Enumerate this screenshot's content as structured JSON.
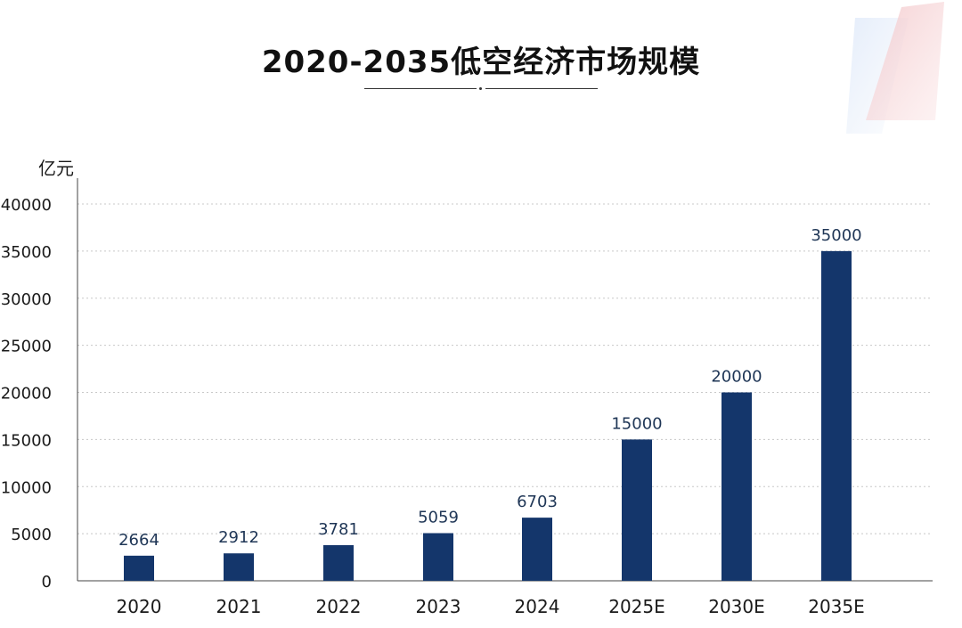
{
  "title": "2020-2035低空经济市场规模",
  "colors": {
    "bar": "#14366b",
    "grid": "#c8c8c8",
    "axis": "#444444",
    "data_label": "#1f3656",
    "deco_blue": "#dfe9f7",
    "deco_pink": "#f6dcdc"
  },
  "chart_data": {
    "type": "bar",
    "title": "2020-2035低空经济市场规模",
    "ylabel": "亿元",
    "xlabel": "",
    "categories": [
      "2020",
      "2021",
      "2022",
      "2023",
      "2024",
      "2025E",
      "2030E",
      "2035E"
    ],
    "values": [
      2664,
      2912,
      3781,
      5059,
      6703,
      15000,
      20000,
      35000
    ],
    "data_labels": [
      "2664",
      "2912",
      "3781",
      "5059",
      "6703",
      "15000",
      "20000",
      "35000"
    ],
    "ylim": [
      0,
      40000
    ],
    "yticks": [
      0,
      5000,
      10000,
      15000,
      20000,
      25000,
      30000,
      35000,
      40000
    ],
    "ytick_labels": [
      "0",
      "5000",
      "10000",
      "15000",
      "20000",
      "25000",
      "30000",
      "35000",
      "40000"
    ],
    "grid": "horizontal dotted",
    "legend": "none"
  }
}
